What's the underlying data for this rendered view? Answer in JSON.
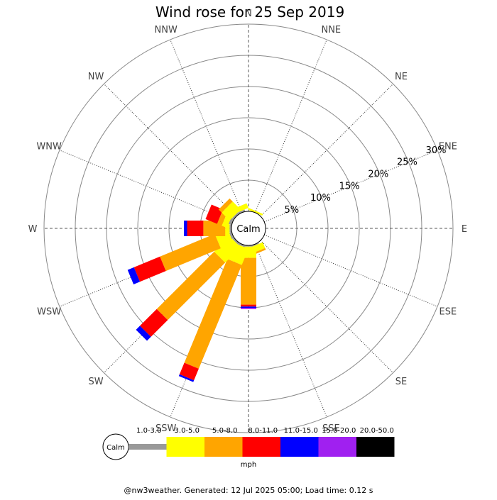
{
  "chart_data": {
    "type": "windrose",
    "title": "Wind rose for 25 Sep 2019",
    "directions": [
      "N",
      "NNE",
      "NE",
      "ENE",
      "E",
      "ESE",
      "SE",
      "SSE",
      "S",
      "SSW",
      "SW",
      "WSW",
      "W",
      "WNW",
      "NW",
      "NNW"
    ],
    "ring_values": [
      5,
      10,
      15,
      20,
      25,
      30
    ],
    "ring_labels": [
      "5%",
      "10%",
      "15%",
      "20%",
      "25%",
      "30%"
    ],
    "calm_label": "Calm",
    "units": "mph",
    "speed_bins": [
      {
        "label": "1.0-3.0",
        "color": "#999999"
      },
      {
        "label": "3.0-5.0",
        "color": "#ffff00"
      },
      {
        "label": "5.0-8.0",
        "color": "#ffa500"
      },
      {
        "label": "8.0-11.0",
        "color": "#ff0000"
      },
      {
        "label": "11.0-15.0",
        "color": "#0000ff"
      },
      {
        "label": "15.0-20.0",
        "color": "#a020f0"
      },
      {
        "label": "20.0-50.0",
        "color": "#000000"
      }
    ],
    "frequencies": {
      "N": [
        0.0,
        0.0,
        0.0,
        0.0,
        0.0,
        0.0,
        0.0
      ],
      "NNE": [
        0.0,
        0.3,
        0.0,
        0.0,
        0.0,
        0.0,
        0.0
      ],
      "NE": [
        0.0,
        0.0,
        0.0,
        0.0,
        0.0,
        0.0,
        0.0
      ],
      "ENE": [
        0.0,
        0.0,
        0.0,
        0.0,
        0.0,
        0.0,
        0.0
      ],
      "E": [
        0.0,
        0.0,
        0.0,
        0.0,
        0.0,
        0.0,
        0.0
      ],
      "ESE": [
        0.0,
        0.0,
        0.0,
        0.0,
        0.0,
        0.0,
        0.0
      ],
      "SE": [
        0.0,
        0.0,
        0.0,
        0.0,
        0.0,
        0.0,
        0.0
      ],
      "SSE": [
        0.2,
        1.0,
        0.3,
        0.0,
        0.0,
        0.0,
        0.0
      ],
      "S": [
        0.2,
        1.8,
        7.5,
        0.3,
        0.2,
        0.2,
        0.0
      ],
      "SSW": [
        0.3,
        2.8,
        18.0,
        2.0,
        0.3,
        0.0,
        0.0
      ],
      "SW": [
        0.3,
        3.5,
        13.0,
        3.8,
        0.9,
        0.0,
        0.0
      ],
      "WSW": [
        0.4,
        2.2,
        9.5,
        4.5,
        1.1,
        0.0,
        0.0
      ],
      "W": [
        0.3,
        0.7,
        3.5,
        2.6,
        0.5,
        0.0,
        0.0
      ],
      "WNW": [
        0.5,
        0.9,
        0.8,
        2.0,
        0.0,
        0.0,
        0.0
      ],
      "NW": [
        0.3,
        1.8,
        0.7,
        0.0,
        0.0,
        0.0,
        0.0
      ],
      "NNW": [
        0.3,
        0.8,
        0.0,
        0.0,
        0.0,
        0.0,
        0.0
      ]
    }
  },
  "footer": "@nw3weather. Generated: 12 Jul 2025 05:00; Load time: 0.12 s"
}
